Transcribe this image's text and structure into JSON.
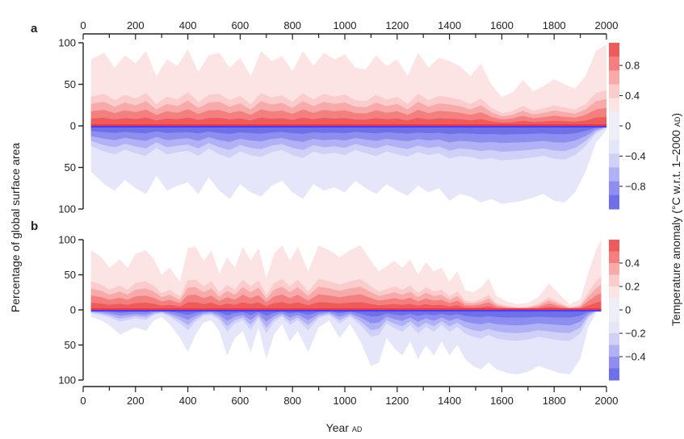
{
  "chart_data": [
    {
      "type": "area",
      "panel_label": "a",
      "x_range": [
        0,
        2000
      ],
      "y_range_warm": [
        0,
        100
      ],
      "y_range_cool": [
        0,
        100
      ],
      "x_ticks": [
        0,
        200,
        400,
        600,
        800,
        1000,
        1200,
        1400,
        1600,
        1800,
        2000
      ],
      "x_tick_labels": [
        "0",
        "200",
        "400",
        "600",
        "800",
        "1000",
        "1200",
        "1400",
        "1600",
        "1800",
        "2000"
      ],
      "y_tick_labels": [
        "100",
        "50",
        "0",
        "50",
        "100"
      ],
      "colorbar_ticks": [
        "0.8",
        "0.4",
        "0",
        "−0.4",
        "−0.8"
      ],
      "colorbar_values": [
        0.8,
        0.4,
        0,
        -0.4,
        -0.8
      ],
      "colorbar_range": [
        -1.1,
        1.1
      ],
      "warm_envelope_x": [
        30,
        80,
        120,
        160,
        200,
        240,
        280,
        320,
        360,
        400,
        440,
        480,
        520,
        560,
        600,
        640,
        680,
        720,
        760,
        800,
        840,
        880,
        920,
        960,
        1000,
        1040,
        1080,
        1120,
        1160,
        1200,
        1240,
        1280,
        1320,
        1360,
        1400,
        1440,
        1480,
        1520,
        1560,
        1600,
        1640,
        1680,
        1720,
        1760,
        1800,
        1840,
        1880,
        1920,
        1960,
        2000
      ],
      "warm_envelope_y": [
        80,
        88,
        70,
        85,
        75,
        90,
        60,
        80,
        72,
        92,
        65,
        85,
        88,
        70,
        82,
        60,
        90,
        78,
        84,
        66,
        90,
        72,
        88,
        80,
        86,
        70,
        68,
        85,
        72,
        80,
        60,
        88,
        70,
        82,
        78,
        72,
        60,
        75,
        50,
        35,
        40,
        55,
        42,
        48,
        56,
        50,
        45,
        60,
        90,
        98
      ],
      "cool_envelope_x": [
        30,
        80,
        120,
        160,
        200,
        240,
        280,
        320,
        360,
        400,
        440,
        480,
        520,
        560,
        600,
        640,
        680,
        720,
        760,
        800,
        840,
        880,
        920,
        960,
        1000,
        1040,
        1080,
        1120,
        1160,
        1200,
        1240,
        1280,
        1320,
        1360,
        1400,
        1440,
        1480,
        1520,
        1560,
        1600,
        1640,
        1680,
        1720,
        1760,
        1800,
        1840,
        1880,
        1920,
        1960,
        2000
      ],
      "cool_envelope_y": [
        55,
        70,
        78,
        65,
        75,
        82,
        60,
        78,
        72,
        68,
        82,
        62,
        78,
        88,
        70,
        80,
        85,
        72,
        66,
        80,
        88,
        70,
        78,
        74,
        80,
        66,
        75,
        82,
        70,
        78,
        84,
        72,
        80,
        75,
        90,
        82,
        85,
        92,
        88,
        94,
        92,
        90,
        86,
        82,
        90,
        92,
        80,
        55,
        20,
        5
      ]
    },
    {
      "type": "area",
      "panel_label": "b",
      "x_range": [
        0,
        2000
      ],
      "y_range_warm": [
        0,
        100
      ],
      "y_range_cool": [
        0,
        100
      ],
      "x_ticks": [
        0,
        200,
        400,
        600,
        800,
        1000,
        1200,
        1400,
        1600,
        1800,
        2000
      ],
      "x_tick_labels": [
        "0",
        "200",
        "400",
        "600",
        "800",
        "1000",
        "1200",
        "1400",
        "1600",
        "1800",
        "2000"
      ],
      "y_tick_labels": [
        "100",
        "50",
        "0",
        "50",
        "100"
      ],
      "colorbar_ticks": [
        "0.4",
        "0.2",
        "0",
        "−0.2",
        "−0.4"
      ],
      "colorbar_values": [
        0.4,
        0.2,
        0,
        -0.2,
        -0.4
      ],
      "colorbar_range": [
        -0.6,
        0.6
      ],
      "warm_envelope_x": [
        30,
        70,
        100,
        140,
        170,
        200,
        240,
        270,
        300,
        330,
        370,
        400,
        430,
        460,
        490,
        520,
        550,
        580,
        610,
        640,
        670,
        700,
        730,
        760,
        790,
        820,
        860,
        900,
        940,
        980,
        1020,
        1060,
        1100,
        1130,
        1160,
        1190,
        1220,
        1250,
        1280,
        1310,
        1340,
        1370,
        1400,
        1430,
        1460,
        1490,
        1520,
        1550,
        1580,
        1620,
        1660,
        1700,
        1740,
        1780,
        1820,
        1860,
        1900,
        1930,
        1960,
        1980
      ],
      "warm_envelope_y": [
        85,
        75,
        60,
        72,
        60,
        80,
        85,
        72,
        50,
        60,
        40,
        88,
        90,
        70,
        85,
        52,
        75,
        60,
        90,
        70,
        88,
        45,
        80,
        92,
        70,
        90,
        55,
        92,
        85,
        75,
        85,
        92,
        70,
        55,
        62,
        70,
        60,
        72,
        50,
        68,
        55,
        60,
        40,
        55,
        28,
        25,
        32,
        45,
        20,
        12,
        8,
        10,
        18,
        38,
        22,
        8,
        15,
        52,
        85,
        100
      ],
      "cool_envelope_x": [
        30,
        70,
        100,
        140,
        170,
        200,
        240,
        270,
        300,
        330,
        370,
        400,
        430,
        460,
        490,
        520,
        550,
        580,
        610,
        640,
        670,
        700,
        730,
        760,
        790,
        820,
        860,
        900,
        940,
        980,
        1020,
        1060,
        1100,
        1130,
        1160,
        1190,
        1220,
        1250,
        1280,
        1310,
        1340,
        1370,
        1400,
        1430,
        1460,
        1490,
        1520,
        1550,
        1580,
        1620,
        1660,
        1700,
        1740,
        1780,
        1820,
        1860,
        1900,
        1930,
        1960,
        1980
      ],
      "cool_envelope_y": [
        10,
        15,
        22,
        35,
        30,
        25,
        30,
        15,
        10,
        20,
        40,
        60,
        35,
        18,
        15,
        30,
        65,
        40,
        30,
        60,
        25,
        70,
        35,
        20,
        45,
        30,
        60,
        25,
        15,
        40,
        20,
        45,
        80,
        75,
        40,
        55,
        65,
        45,
        70,
        50,
        65,
        45,
        65,
        50,
        70,
        80,
        85,
        75,
        85,
        90,
        92,
        88,
        80,
        85,
        90,
        92,
        70,
        25,
        5,
        0
      ]
    }
  ],
  "labels": {
    "panel_a": "a",
    "panel_b": "b",
    "ylabel": "Percentage of global surface area",
    "xlabel_main": "Year",
    "xlabel_unit": "AD",
    "colorbar_label": "Temperature anomaly (°C w.r.t. 1–2000",
    "colorbar_label_unit": "AD",
    "colorbar_label_end": ")"
  },
  "colors": {
    "warm_levels": [
      "#fde4e4",
      "#fbcccc",
      "#f8aaaa",
      "#f47f7f",
      "#ef5a5a"
    ],
    "cool_levels": [
      "#e6e6fb",
      "#d0d0f8",
      "#b1b1f5",
      "#8e8ef0",
      "#6f6fea"
    ],
    "warm_line": "#ff3333",
    "cool_line": "#4040ff"
  }
}
